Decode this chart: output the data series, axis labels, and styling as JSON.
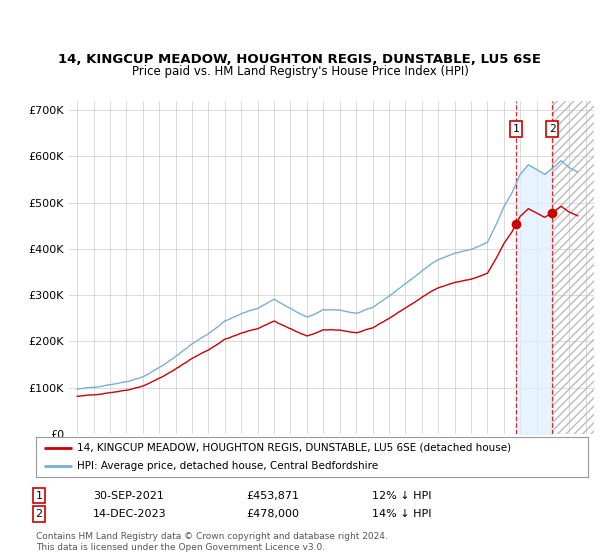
{
  "title": "14, KINGCUP MEADOW, HOUGHTON REGIS, DUNSTABLE, LU5 6SE",
  "subtitle": "Price paid vs. HM Land Registry's House Price Index (HPI)",
  "background_color": "#ffffff",
  "grid_color": "#cccccc",
  "hpi_color": "#7bafd4",
  "price_color": "#cc0000",
  "legend_label1": "14, KINGCUP MEADOW, HOUGHTON REGIS, DUNSTABLE, LU5 6SE (detached house)",
  "legend_label2": "HPI: Average price, detached house, Central Bedfordshire",
  "transaction1_date": "30-SEP-2021",
  "transaction1_price": "£453,871",
  "transaction1_hpi": "12% ↓ HPI",
  "transaction2_date": "14-DEC-2023",
  "transaction2_price": "£478,000",
  "transaction2_hpi": "14% ↓ HPI",
  "footnote": "Contains HM Land Registry data © Crown copyright and database right 2024.\nThis data is licensed under the Open Government Licence v3.0.",
  "sale_date1": 2021.75,
  "sale_date2": 2023.96,
  "sale_price1": 453871,
  "sale_price2": 478000,
  "xlim_min": 1994.5,
  "xlim_max": 2026.5,
  "ylim_min": 0,
  "ylim_max": 720000,
  "yticks": [
    0,
    100000,
    200000,
    300000,
    400000,
    500000,
    600000,
    700000
  ]
}
